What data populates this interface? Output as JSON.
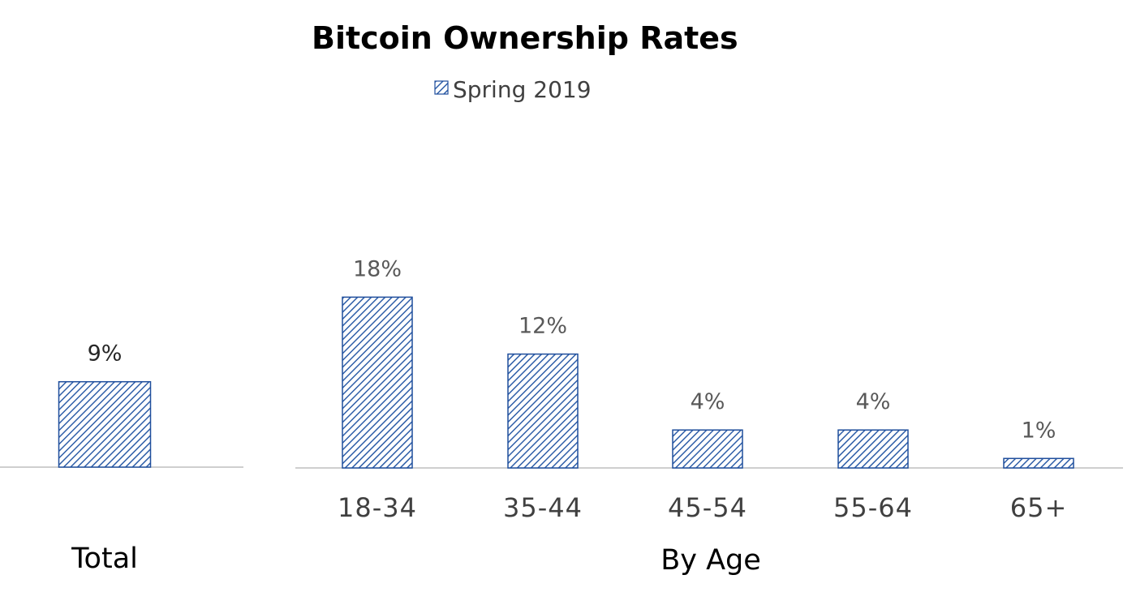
{
  "chart_data": [
    {
      "type": "bar",
      "title": "Bitcoin Ownership Rates",
      "legend": [
        "Spring 2019"
      ],
      "legend_position": "top",
      "group_label": "Total",
      "categories": [
        ""
      ],
      "series": [
        {
          "name": "Spring 2019",
          "values": [
            9
          ],
          "labels": [
            "9%"
          ]
        }
      ],
      "ylim": [
        0,
        20
      ],
      "grid": false
    },
    {
      "type": "bar",
      "group_label": "By Age",
      "categories": [
        "18-34",
        "35-44",
        "45-54",
        "55-64",
        "65+"
      ],
      "series": [
        {
          "name": "Spring 2019",
          "values": [
            18,
            12,
            4,
            4,
            1
          ],
          "labels": [
            "18%",
            "12%",
            "4%",
            "4%",
            "1%"
          ]
        }
      ],
      "ylim": [
        0,
        20
      ],
      "grid": false
    }
  ],
  "colors": {
    "bar_stroke": "#1f4e9c",
    "bar_hatch": "#2e5ea8",
    "baseline": "#bfbfbf"
  }
}
